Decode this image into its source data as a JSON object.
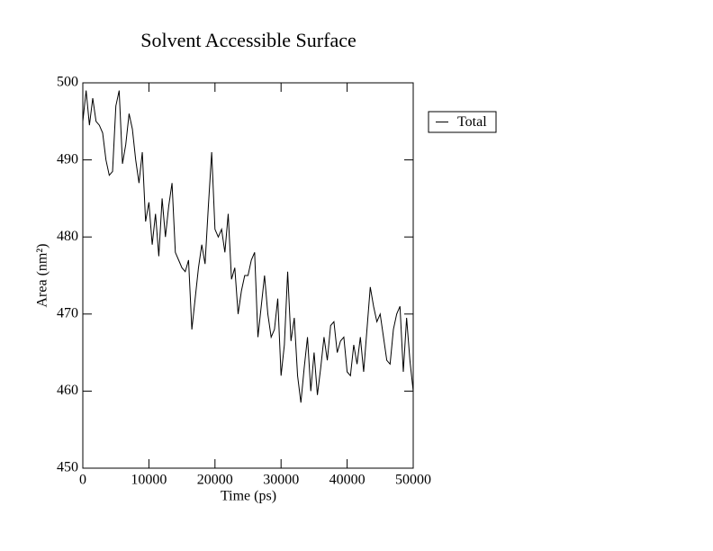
{
  "chart_data": {
    "type": "line",
    "title": "Solvent Accessible Surface",
    "x_label": "Time (ps)",
    "y_label": "Area (nm²)",
    "x": [
      0,
      500,
      1000,
      1500,
      2000,
      2500,
      3000,
      3500,
      4000,
      4500,
      5000,
      5500,
      6000,
      6500,
      7000,
      7500,
      8000,
      8500,
      9000,
      9500,
      10000,
      10500,
      11000,
      11500,
      12000,
      12500,
      13000,
      13500,
      14000,
      14500,
      15000,
      15500,
      16000,
      16500,
      17000,
      17500,
      18000,
      18500,
      19000,
      19500,
      20000,
      20500,
      21000,
      21500,
      22000,
      22500,
      23000,
      23500,
      24000,
      24500,
      25000,
      25500,
      26000,
      26500,
      27000,
      27500,
      28000,
      28500,
      29000,
      29500,
      30000,
      30500,
      31000,
      31500,
      32000,
      32500,
      33000,
      33500,
      34000,
      34500,
      35000,
      35500,
      36000,
      36500,
      37000,
      37500,
      38000,
      38500,
      39000,
      39500,
      40000,
      40500,
      41000,
      41500,
      42000,
      42500,
      43000,
      43500,
      44000,
      44500,
      45000,
      45500,
      46000,
      46500,
      47000,
      47500,
      48000,
      48500,
      49000,
      49500,
      50000
    ],
    "series": [
      {
        "name": "Total",
        "color": "#000000",
        "values": [
          495,
          499,
          494.5,
          498,
          495,
          494.5,
          493.5,
          490,
          488,
          488.5,
          497,
          499,
          489.5,
          492,
          496,
          494,
          490,
          487,
          491,
          482,
          484.5,
          479,
          483,
          477.5,
          485,
          480,
          484,
          487,
          478,
          477,
          476,
          475.5,
          477,
          468,
          472,
          476,
          479,
          476.5,
          484,
          491,
          481,
          480,
          481,
          478,
          483,
          474.5,
          476,
          470,
          473,
          475,
          475,
          477,
          478,
          467,
          471,
          475,
          470,
          467,
          468,
          472,
          462,
          466,
          475.5,
          466.5,
          469.5,
          462,
          458.5,
          463,
          467,
          460,
          465,
          459.5,
          463,
          467,
          464,
          468.5,
          469,
          465,
          466.5,
          467,
          462.5,
          462,
          466,
          463.5,
          467,
          462.5,
          468,
          473.5,
          471,
          469,
          470,
          467,
          464,
          463.5,
          468,
          470,
          471,
          462.5,
          469.5,
          464,
          460
        ]
      }
    ],
    "xlim": [
      0,
      50000
    ],
    "ylim": [
      450,
      500
    ],
    "xticks": [
      0,
      10000,
      20000,
      30000,
      40000,
      50000
    ],
    "yticks": [
      450,
      460,
      470,
      480,
      490,
      500
    ],
    "legend": "right"
  }
}
